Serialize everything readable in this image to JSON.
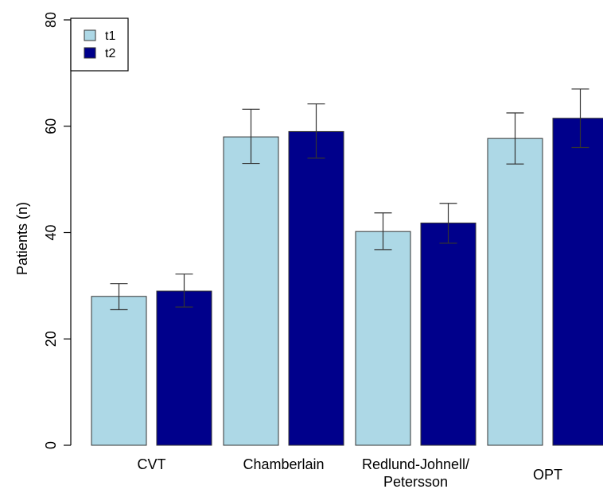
{
  "chart_data": {
    "type": "bar",
    "title": "",
    "xlabel": "",
    "ylabel": "Patients (n)",
    "ylim": [
      0,
      80
    ],
    "yticks": [
      "0",
      "20",
      "40",
      "60",
      "80"
    ],
    "categories": [
      [
        "CVT"
      ],
      [
        "Chamberlain"
      ],
      [
        "Redlund-Johnell/",
        "Petersson"
      ],
      [
        "OPT"
      ]
    ],
    "series": [
      {
        "name": "t1",
        "color": "#add8e6",
        "values": [
          28,
          58,
          40.2,
          57.7
        ],
        "error_low": [
          25.5,
          53,
          36.8,
          52.9
        ],
        "error_high": [
          30.4,
          63.2,
          43.7,
          62.5
        ]
      },
      {
        "name": "t2",
        "color": "#00008b",
        "values": [
          29,
          59,
          41.8,
          61.5
        ],
        "error_low": [
          26,
          54,
          38,
          56
        ],
        "error_high": [
          32.2,
          64.2,
          45.5,
          67
        ]
      }
    ],
    "legend_position": "top-left",
    "grid": false
  }
}
